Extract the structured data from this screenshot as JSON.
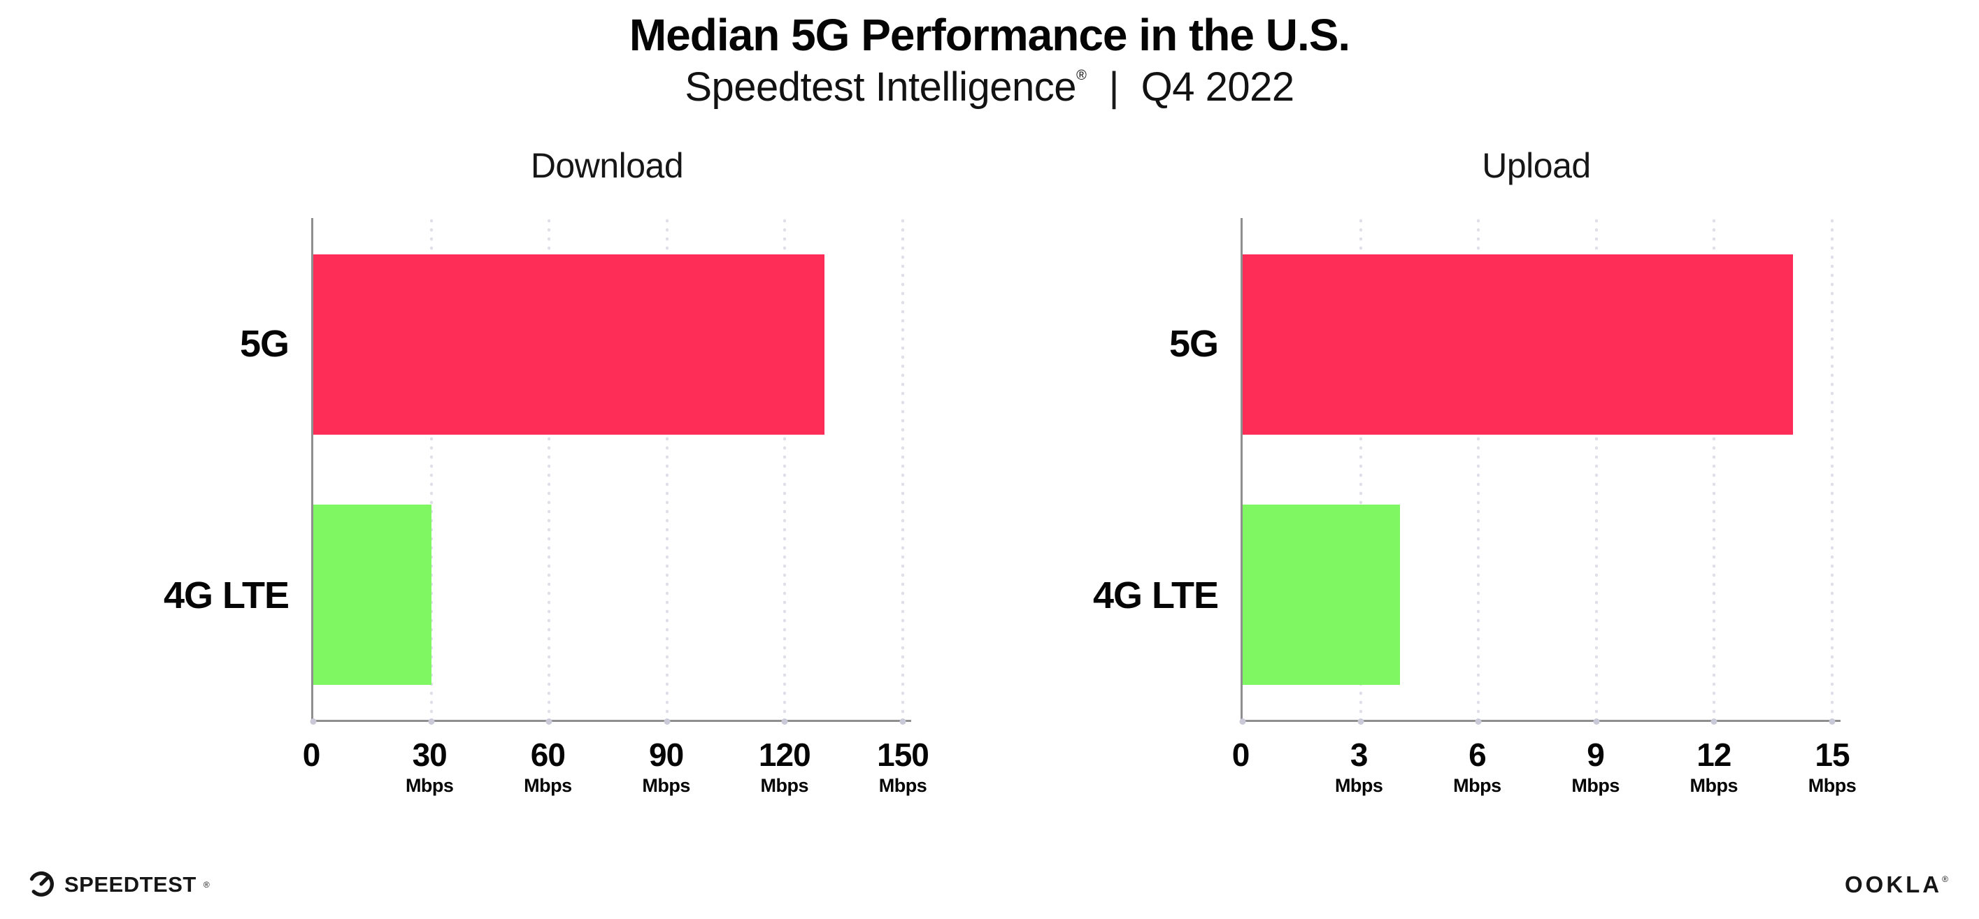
{
  "header": {
    "title": "Median 5G Performance in the U.S.",
    "subtitle": {
      "brand": "Speedtest Intelligence",
      "registered_mark": "®",
      "separator": "|",
      "period": "Q4 2022"
    }
  },
  "chart_data": [
    {
      "type": "bar",
      "orientation": "horizontal",
      "title": "Download",
      "categories": [
        "5G",
        "4G LTE"
      ],
      "values": [
        130,
        30
      ],
      "unit": "Mbps",
      "xlim": [
        0,
        150
      ],
      "xticks": [
        0,
        30,
        60,
        90,
        120,
        150
      ],
      "bar_colors": [
        "#FD2D57",
        "#7FF763"
      ],
      "grid": "dotted-vertical-at-ticks",
      "legend": "none"
    },
    {
      "type": "bar",
      "orientation": "horizontal",
      "title": "Upload",
      "categories": [
        "5G",
        "4G LTE"
      ],
      "values": [
        14,
        4
      ],
      "unit": "Mbps",
      "xlim": [
        0,
        15
      ],
      "xticks": [
        0,
        3,
        6,
        9,
        12,
        15
      ],
      "bar_colors": [
        "#FD2D57",
        "#7FF763"
      ],
      "grid": "dotted-vertical-at-ticks",
      "legend": "none"
    }
  ],
  "footer": {
    "speedtest": {
      "label": "SPEEDTEST",
      "mark": "®",
      "icon": "speedtest-gauge-icon"
    },
    "ookla": {
      "label": "OOKLA",
      "mark": "®"
    }
  },
  "colors": {
    "bar_5g": "#FD2D57",
    "bar_4g_lte": "#7FF763",
    "axis": "#8F8F8F",
    "gridline_dots": "#DFDFEA",
    "text": "#0B0B0B",
    "background": "#FFFFFF"
  }
}
